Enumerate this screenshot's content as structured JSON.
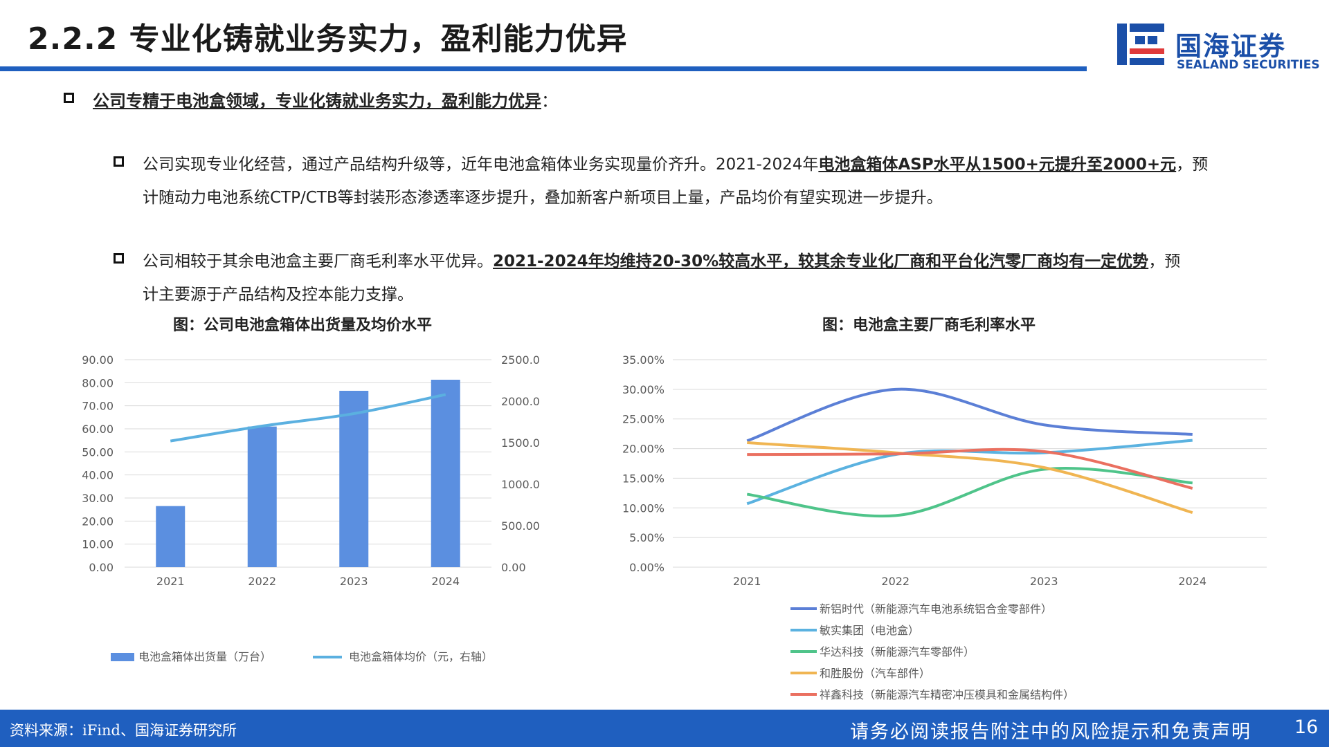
{
  "header": {
    "title": "2.2.2 专业化铸就业务实力，盈利能力优异",
    "logo": {
      "cn": "国海证券",
      "en": "SEALAND SECURITIES"
    }
  },
  "bullets": {
    "main": "公司专精于电池盒领域，专业化铸就业务实力，盈利能力优异",
    "main_tail": "：",
    "b1": {
      "pre": "公司实现专业化经营，通过产品结构升级等，近年电池盒箱体业务实现量价齐升。2021-2024年",
      "hl": "电池盒箱体ASP水平从1500+元提升至2000+元",
      "post": "，预",
      "line2": "计随动力电池系统CTP/CTB等封装形态渗透率逐步提升，叠加新客户新项目上量，产品均价有望实现进一步提升。"
    },
    "b2": {
      "pre": "公司相较于其余电池盒主要厂商毛利率水平优异。",
      "hl": "2021-2024年均维持20-30%较高水平，较其余专业化厂商和平台化汽零厂商均有一定优势",
      "post": "，预",
      "line2": "计主要源于产品结构及控本能力支撑。"
    }
  },
  "chart_data": [
    {
      "type": "bar",
      "title": "图：公司电池盒箱体出货量及均价水平",
      "categories": [
        "2021",
        "2022",
        "2023",
        "2024"
      ],
      "series": [
        {
          "name": "电池盒箱体出货量（万台）",
          "type": "bar",
          "axis": "left",
          "color": "#5b8fe0",
          "values": [
            26.5,
            61,
            76.5,
            81.3
          ]
        },
        {
          "name": "电池盒箱体均价（元，右轴）",
          "type": "line",
          "axis": "right",
          "color": "#5bb0e0",
          "values": [
            1520,
            1700,
            1850,
            2080
          ]
        }
      ],
      "y_left": {
        "min": 0,
        "max": 90,
        "step": 10,
        "ticks": [
          "0.00",
          "10.00",
          "20.00",
          "30.00",
          "40.00",
          "50.00",
          "60.00",
          "70.00",
          "80.00",
          "90.00"
        ]
      },
      "y_right": {
        "min": 0,
        "max": 2500,
        "step": 500,
        "ticks": [
          "0.00",
          "500.00",
          "1000.00",
          "1500.00",
          "2000.00",
          "2500.00"
        ]
      },
      "grid": true,
      "legend": "bottom"
    },
    {
      "type": "line",
      "title": "图：电池盒主要厂商毛利率水平",
      "categories": [
        "2021",
        "2022",
        "2023",
        "2024"
      ],
      "series": [
        {
          "name": "新铝时代（新能源汽车电池系统铝合金零部件）",
          "color": "#5b7fd6",
          "values": [
            21.3,
            30.0,
            24.0,
            22.4
          ]
        },
        {
          "name": "敏实集团（电池盒）",
          "color": "#5bb2e0",
          "values": [
            10.7,
            19.0,
            19.3,
            21.4
          ]
        },
        {
          "name": "华达科技（新能源汽车零部件）",
          "color": "#4fc48a",
          "values": [
            12.3,
            8.7,
            16.5,
            14.2
          ]
        },
        {
          "name": "和胜股份（汽车部件）",
          "color": "#f0b552",
          "values": [
            21.0,
            19.3,
            16.8,
            9.2
          ]
        },
        {
          "name": "祥鑫科技（新能源汽车精密冲压模具和金属结构件）",
          "color": "#ea7060",
          "values": [
            19.0,
            19.1,
            19.5,
            13.3
          ]
        }
      ],
      "y": {
        "min": 0,
        "max": 35,
        "step": 5,
        "ticks": [
          "0.00%",
          "5.00%",
          "10.00%",
          "15.00%",
          "20.00%",
          "25.00%",
          "30.00%",
          "35.00%"
        ]
      },
      "grid": true,
      "legend": "bottom"
    }
  ],
  "footer": {
    "source": "资料来源：iFind、国海证券研究所",
    "disclaimer": "请务必阅读报告附注中的风险提示和免责声明",
    "page": "16"
  },
  "colors": {
    "brand": "#1f5fbf"
  }
}
